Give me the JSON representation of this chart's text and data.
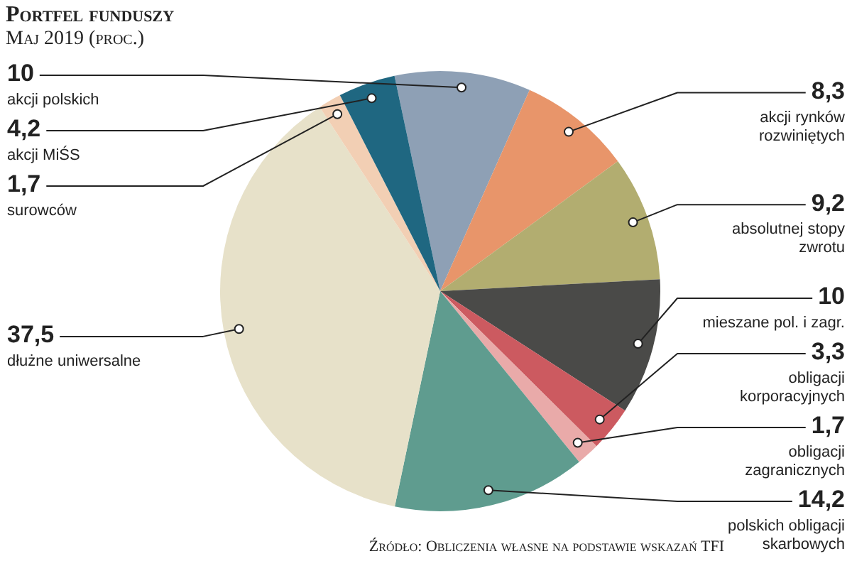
{
  "chart_data": {
    "type": "pie",
    "title": "Portfel funduszy",
    "subtitle": "Maj 2019 (proc.)",
    "categories": [
      "akcji polskich",
      "akcji rynków rozwiniętych",
      "absolutnej stopy zwrotu",
      "mieszane pol. i zagr.",
      "obligacji korporacyjnych",
      "obligacji zagranicznych",
      "polskich obligacji skarbowych",
      "dłużne uniwersalne",
      "surowców",
      "akcji MiŚS"
    ],
    "values": [
      10,
      8.3,
      9.2,
      10,
      3.3,
      1.7,
      14.2,
      37.5,
      1.7,
      4.2
    ],
    "value_labels": [
      "10",
      "8,3",
      "9,2",
      "10",
      "3,3",
      "1,7",
      "14,2",
      "37,5",
      "1,7",
      "4,2"
    ],
    "colors": [
      "#8ea0b5",
      "#e8956a",
      "#b2ad70",
      "#4a4a48",
      "#cc5a60",
      "#e9aaa9",
      "#5f9c8f",
      "#e7e1c9",
      "#f2cfb4",
      "#1f6781"
    ],
    "legend": false,
    "annotations": [
      "Źródło: Obliczenia własne na podstawie wskazań TFI"
    ]
  }
}
